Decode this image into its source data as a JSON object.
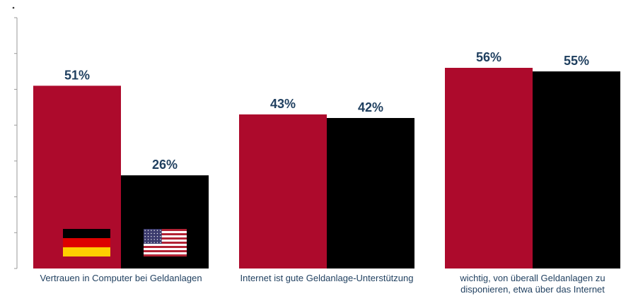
{
  "chart_data": {
    "type": "bar",
    "title": "",
    "xlabel": "",
    "ylabel": "",
    "ylim": [
      0,
      70
    ],
    "grid": false,
    "categories": [
      [
        "Vertrauen in Computer bei Geldanlagen"
      ],
      [
        "Internet ist gute Geldanlage-Unterstützung"
      ],
      [
        "wichtig, von überall Geldanlagen zu",
        "disponieren, etwa über das Internet"
      ]
    ],
    "series": [
      {
        "values": [
          51,
          43,
          56
        ],
        "labels": [
          "51%",
          "43%",
          "56%"
        ],
        "color": "#ad0a2c",
        "icon": "germany-flag-icon"
      },
      {
        "values": [
          26,
          42,
          55
        ],
        "labels": [
          "26%",
          "42%",
          "55%"
        ],
        "color": "#000000",
        "icon": "usa-flag-icon"
      }
    ]
  }
}
